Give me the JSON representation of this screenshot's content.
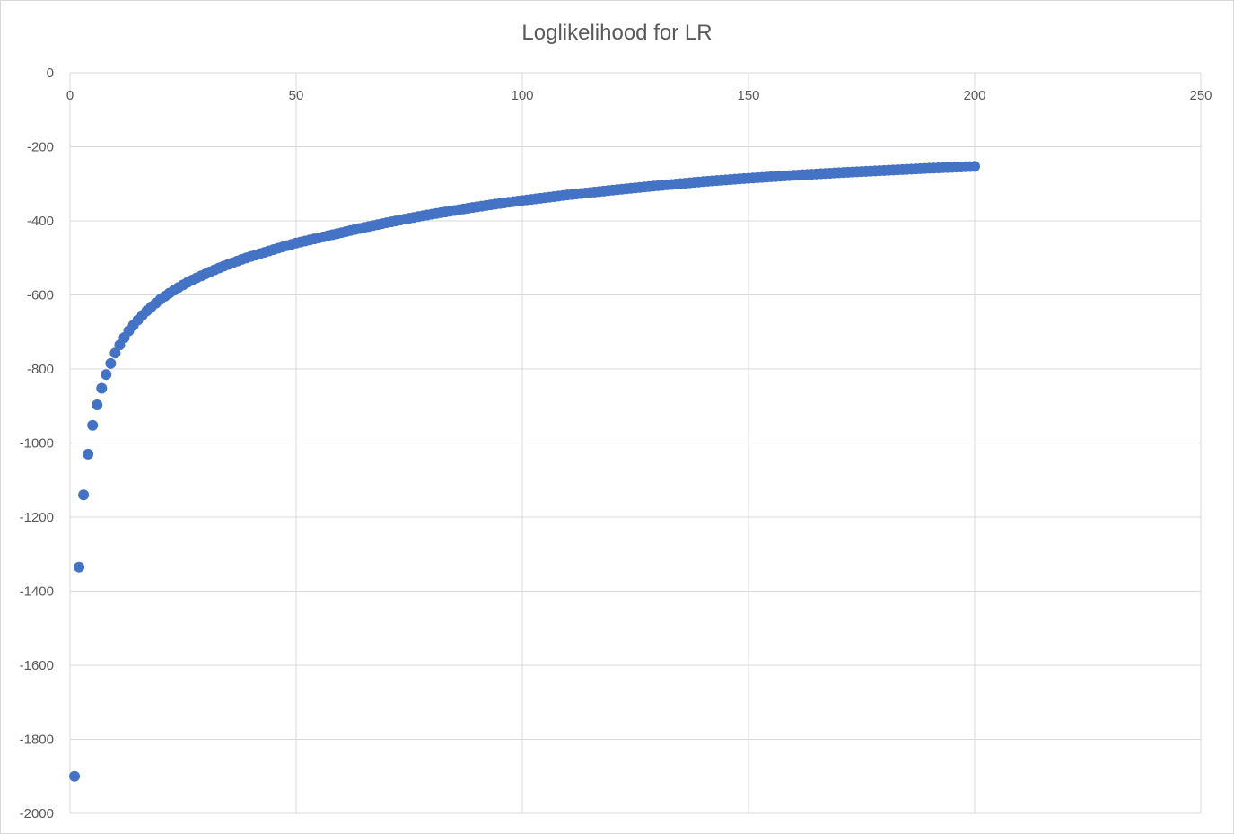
{
  "chart_data": {
    "type": "scatter",
    "title": "Loglikelihood for LR",
    "xlabel": "",
    "ylabel": "",
    "xlim": [
      0,
      250
    ],
    "ylim": [
      -2000,
      0
    ],
    "x_ticks": [
      0,
      50,
      100,
      150,
      200,
      250
    ],
    "y_ticks": [
      0,
      -200,
      -400,
      -600,
      -800,
      -1000,
      -1200,
      -1400,
      -1600,
      -1800,
      -2000
    ],
    "x_tick_labels": [
      "0",
      "50",
      "100",
      "150",
      "200",
      "250"
    ],
    "y_tick_labels": [
      "0",
      "-200",
      "-400",
      "-600",
      "-800",
      "-1000",
      "-1200",
      "-1400",
      "-1600",
      "-1800",
      "-2000"
    ],
    "x_axis_position": "top",
    "grid": true,
    "marker_color": "#4472c4",
    "series": [
      {
        "x": [
          1,
          2,
          3,
          4,
          5,
          6,
          7,
          8,
          9,
          10,
          11,
          12,
          13,
          14,
          15,
          16,
          17,
          18,
          19,
          20,
          22,
          24,
          26,
          28,
          30,
          32,
          34,
          36,
          38,
          40,
          43,
          46,
          50,
          55,
          60,
          62,
          65,
          70,
          75,
          80,
          85,
          90,
          95,
          100,
          110,
          120,
          130,
          140,
          150,
          160,
          170,
          180,
          190,
          200
        ],
        "values": [
          -1900,
          -1335,
          -1140,
          -1030,
          -952,
          -897,
          -852,
          -815,
          -785,
          -757,
          -735,
          -715,
          -697,
          -682,
          -668,
          -655,
          -643,
          -632,
          -622,
          -612,
          -595,
          -580,
          -566,
          -554,
          -543,
          -532,
          -522,
          -513,
          -504,
          -496,
          -485,
          -474,
          -460,
          -446,
          -432,
          -426,
          -418,
          -405,
          -393,
          -382,
          -372,
          -362,
          -353,
          -345,
          -330,
          -317,
          -305,
          -294,
          -285,
          -277,
          -270,
          -264,
          -258,
          -253
        ]
      }
    ]
  }
}
